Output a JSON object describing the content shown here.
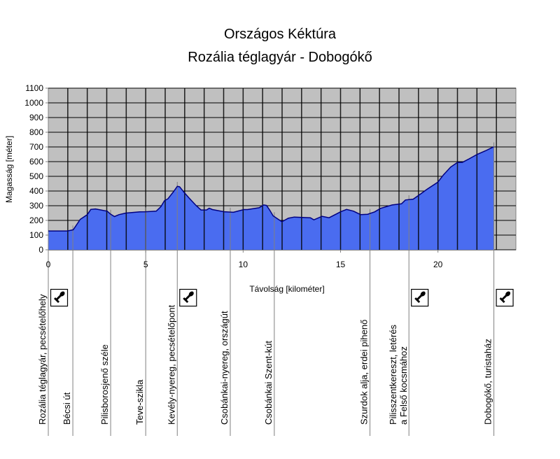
{
  "chart_data": {
    "type": "area",
    "title": "Országos Kéktúra",
    "subtitle": "Rozália téglagyár - Dobogókő",
    "xlabel": "Távolság [kilométer]",
    "ylabel": "Magasság [méter]",
    "xlim": [
      0,
      24
    ],
    "ylim": [
      0,
      1100
    ],
    "x_ticks": [
      0,
      5,
      10,
      15,
      20
    ],
    "y_ticks": [
      0,
      100,
      200,
      300,
      400,
      500,
      600,
      700,
      800,
      900,
      1000,
      1100
    ],
    "grid": true,
    "colors": {
      "fill": "#4a6cf0",
      "line": "#000080",
      "plot_bg": "#c0c0c0",
      "grid": "#000000"
    },
    "series": [
      {
        "name": "Magasság",
        "points": [
          [
            0,
            128
          ],
          [
            0.98,
            128
          ],
          [
            1.28,
            136
          ],
          [
            1.64,
            207
          ],
          [
            2.0,
            239
          ],
          [
            2.18,
            275
          ],
          [
            2.42,
            278
          ],
          [
            3.02,
            263
          ],
          [
            3.2,
            242
          ],
          [
            3.4,
            226
          ],
          [
            3.62,
            239
          ],
          [
            3.98,
            250
          ],
          [
            4.7,
            258
          ],
          [
            5.0,
            259
          ],
          [
            5.54,
            263
          ],
          [
            5.78,
            294
          ],
          [
            5.96,
            334
          ],
          [
            6.14,
            347
          ],
          [
            6.44,
            397
          ],
          [
            6.62,
            432
          ],
          [
            6.74,
            429
          ],
          [
            6.98,
            389
          ],
          [
            7.22,
            353
          ],
          [
            7.58,
            302
          ],
          [
            7.84,
            271
          ],
          [
            8.12,
            271
          ],
          [
            8.26,
            283
          ],
          [
            8.42,
            274
          ],
          [
            9.02,
            259
          ],
          [
            9.5,
            255
          ],
          [
            10.04,
            274
          ],
          [
            10.22,
            274
          ],
          [
            10.82,
            286
          ],
          [
            11.06,
            305
          ],
          [
            11.2,
            302
          ],
          [
            11.36,
            271
          ],
          [
            11.54,
            231
          ],
          [
            11.99,
            191
          ],
          [
            12.32,
            215
          ],
          [
            12.62,
            223
          ],
          [
            13.45,
            218
          ],
          [
            13.63,
            204
          ],
          [
            14.05,
            228
          ],
          [
            14.41,
            218
          ],
          [
            15.01,
            259
          ],
          [
            15.31,
            275
          ],
          [
            15.67,
            263
          ],
          [
            16.03,
            239
          ],
          [
            16.39,
            242
          ],
          [
            16.75,
            258
          ],
          [
            17.05,
            282
          ],
          [
            17.65,
            305
          ],
          [
            18.13,
            313
          ],
          [
            18.33,
            339
          ],
          [
            18.73,
            345
          ],
          [
            19.03,
            373
          ],
          [
            19.45,
            413
          ],
          [
            19.99,
            460
          ],
          [
            20.29,
            511
          ],
          [
            20.65,
            563
          ],
          [
            21.0,
            595
          ],
          [
            21.25,
            595
          ],
          [
            21.6,
            619
          ],
          [
            22.02,
            650
          ],
          [
            22.44,
            674
          ],
          [
            22.86,
            701
          ]
        ]
      }
    ],
    "waypoints": [
      {
        "km": 0,
        "label": "Rozália téglagyár, pecsételőhely",
        "stamp": true
      },
      {
        "km": 1.26,
        "label": "Bécsi út",
        "stamp": false
      },
      {
        "km": 3.2,
        "label": "Pilisborosjenő széle",
        "stamp": false
      },
      {
        "km": 5.0,
        "label": "Teve-szikla",
        "stamp": false
      },
      {
        "km": 6.62,
        "label": "Kevély-nyereg, pecsételőpont",
        "stamp": true
      },
      {
        "km": 9.34,
        "label": "Csobánkai-nyereg, országút",
        "stamp": false
      },
      {
        "km": 11.6,
        "label": "Csobánkai Szent-kút",
        "stamp": false
      },
      {
        "km": 16.51,
        "label": "Szurdok alja, erdei pihenő",
        "stamp": false
      },
      {
        "km": 18.51,
        "label": "Pilisszentkereszt, letérés",
        "label2": "a Felső kocsmához",
        "stamp": true
      },
      {
        "km": 22.87,
        "label": "Dobogókő, turistaház",
        "stamp": true
      }
    ]
  }
}
